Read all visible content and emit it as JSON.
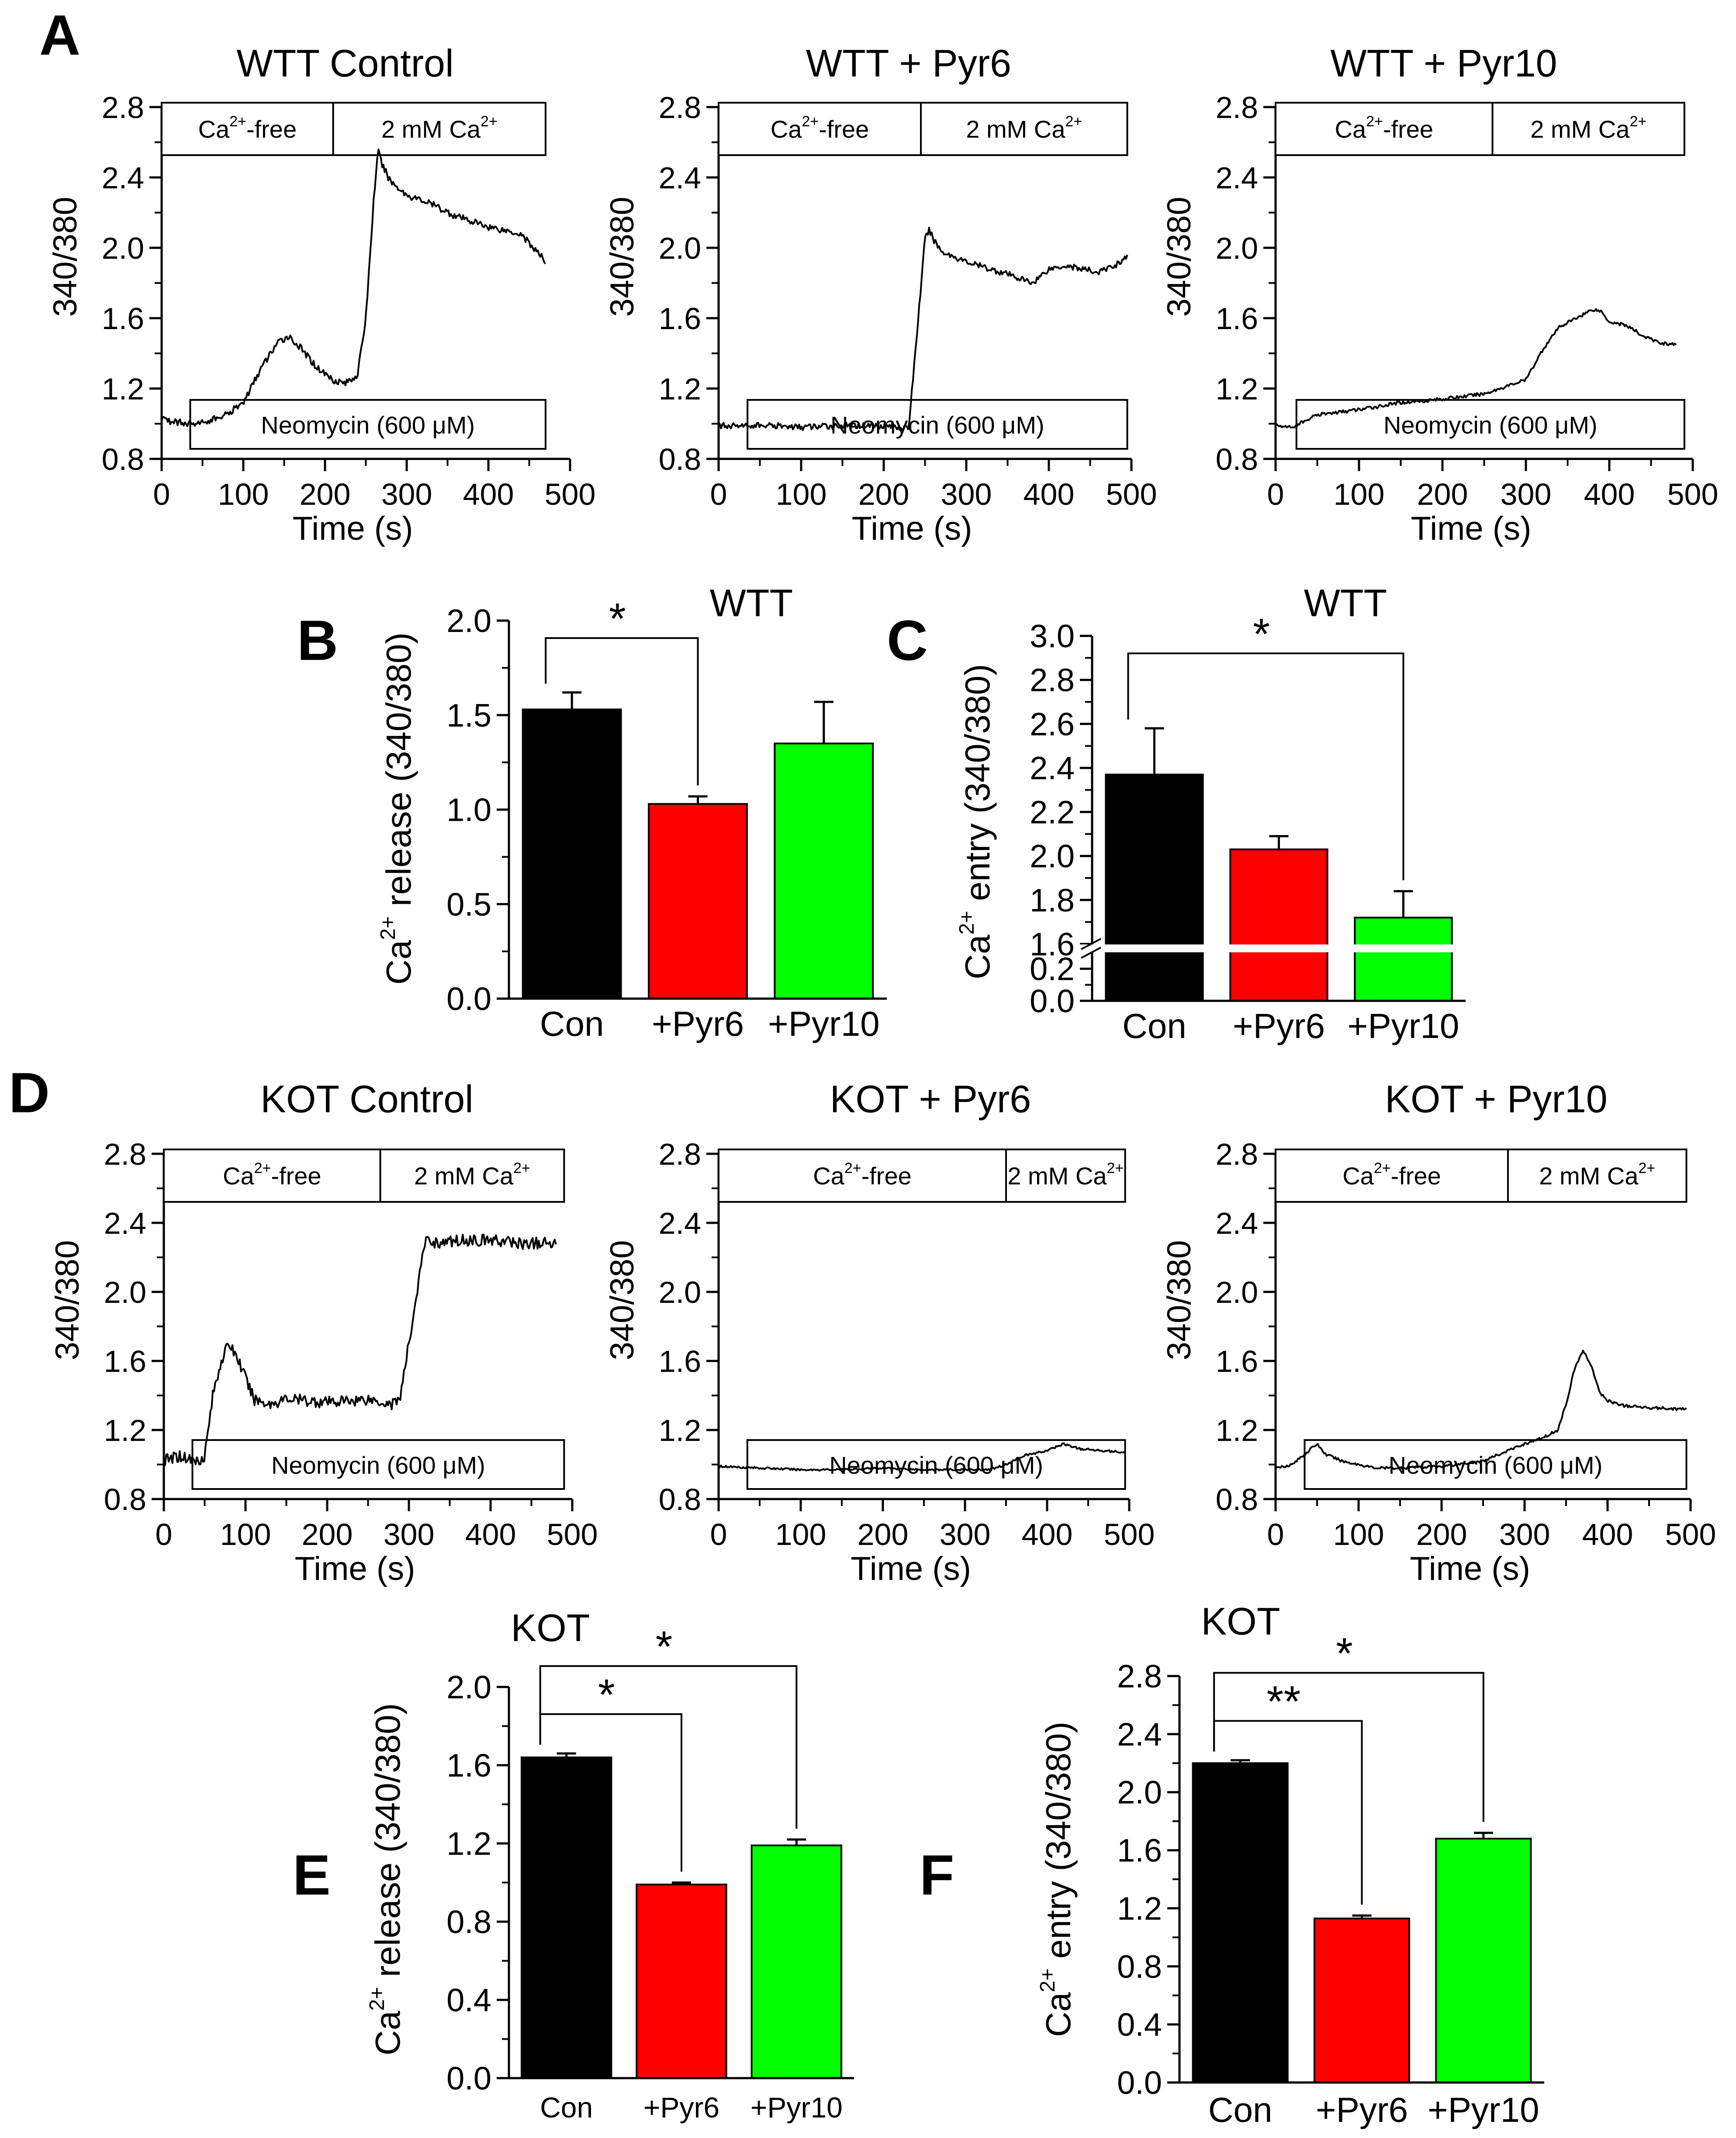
{
  "figure": {
    "panel_letters": [
      "A",
      "B",
      "C",
      "D",
      "E",
      "F"
    ]
  },
  "chart_data": [
    {
      "id": "A1",
      "type": "line",
      "title": "WTT Control",
      "xlabel": "Time (s)",
      "ylabel": "340/380",
      "xlim": [
        0,
        500
      ],
      "ylim": [
        0.8,
        2.8
      ],
      "xticks": [
        "0",
        "100",
        "200",
        "300",
        "400",
        "500"
      ],
      "yticks": [
        "0.8",
        "1.2",
        "1.6",
        "2.0",
        "2.4",
        "2.8"
      ],
      "top_boxes": [
        {
          "pre": "Ca",
          "sup": "2+",
          "post": "-free",
          "x0": 0,
          "x1": 210
        },
        {
          "pre": "2 mM Ca",
          "sup": "2+",
          "post": "",
          "x0": 210,
          "x1": 470
        }
      ],
      "bottom_box": {
        "label": "Neomycin (600 μM)",
        "x0": 35,
        "x1": 470
      },
      "noise": 0.02,
      "series": [
        {
          "x": [
            0,
            20,
            40,
            60,
            80,
            100,
            120,
            140,
            155,
            170,
            190,
            210,
            225,
            240,
            250,
            260,
            265,
            270,
            280,
            300,
            330,
            360,
            400,
            440,
            470
          ],
          "y": [
            1.02,
            1.01,
            1.0,
            1.02,
            1.05,
            1.12,
            1.3,
            1.45,
            1.5,
            1.43,
            1.32,
            1.25,
            1.23,
            1.28,
            1.6,
            2.3,
            2.55,
            2.47,
            2.38,
            2.3,
            2.25,
            2.18,
            2.12,
            2.08,
            1.92
          ]
        }
      ]
    },
    {
      "id": "A2",
      "type": "line",
      "title": "WTT + Pyr6",
      "xlabel": "Time (s)",
      "ylabel": "340/380",
      "xlim": [
        0,
        500
      ],
      "ylim": [
        0.8,
        2.8
      ],
      "xticks": [
        "0",
        "100",
        "200",
        "300",
        "400",
        "500"
      ],
      "yticks": [
        "0.8",
        "1.2",
        "1.6",
        "2.0",
        "2.4",
        "2.8"
      ],
      "top_boxes": [
        {
          "pre": "Ca",
          "sup": "2+",
          "post": "-free",
          "x0": 0,
          "x1": 245
        },
        {
          "pre": "2 mM Ca",
          "sup": "2+",
          "post": "",
          "x0": 245,
          "x1": 495
        }
      ],
      "bottom_box": {
        "label": "Neomycin (600 μM)",
        "x0": 35,
        "x1": 495
      },
      "noise": 0.018,
      "series": [
        {
          "x": [
            0,
            50,
            100,
            150,
            200,
            220,
            230,
            240,
            250,
            255,
            260,
            270,
            300,
            350,
            380,
            400,
            420,
            440,
            460,
            480,
            495
          ],
          "y": [
            0.99,
            0.99,
            0.98,
            0.99,
            0.99,
            0.98,
            0.97,
            1.5,
            2.05,
            2.1,
            2.05,
            1.98,
            1.92,
            1.85,
            1.8,
            1.88,
            1.9,
            1.88,
            1.86,
            1.9,
            1.95
          ]
        }
      ]
    },
    {
      "id": "A3",
      "type": "line",
      "title": "WTT + Pyr10",
      "xlabel": "Time (s)",
      "ylabel": "340/380",
      "xlim": [
        0,
        500
      ],
      "ylim": [
        0.8,
        2.8
      ],
      "xticks": [
        "0",
        "100",
        "200",
        "300",
        "400",
        "500"
      ],
      "yticks": [
        "0.8",
        "1.2",
        "1.6",
        "2.0",
        "2.4",
        "2.8"
      ],
      "top_boxes": [
        {
          "pre": "Ca",
          "sup": "2+",
          "post": "-free",
          "x0": 0,
          "x1": 260
        },
        {
          "pre": "2 mM Ca",
          "sup": "2+",
          "post": "",
          "x0": 260,
          "x1": 490
        }
      ],
      "bottom_box": {
        "label": "Neomycin (600 μM)",
        "x0": 25,
        "x1": 490
      },
      "noise": 0.01,
      "series": [
        {
          "x": [
            0,
            20,
            50,
            100,
            150,
            200,
            250,
            300,
            320,
            340,
            360,
            380,
            390,
            400,
            420,
            440,
            460,
            480
          ],
          "y": [
            0.99,
            0.98,
            1.05,
            1.08,
            1.12,
            1.14,
            1.17,
            1.25,
            1.42,
            1.55,
            1.6,
            1.65,
            1.64,
            1.58,
            1.56,
            1.5,
            1.46,
            1.45
          ]
        }
      ]
    },
    {
      "id": "B",
      "type": "bar",
      "title": "WTT",
      "ylabel_pre": "Ca",
      "ylabel_sup": "2+",
      "ylabel_post": " release (340/380)",
      "categories": [
        "Con",
        "+Pyr6",
        "+Pyr10"
      ],
      "values": [
        1.53,
        1.03,
        1.35
      ],
      "errors": [
        0.09,
        0.04,
        0.22
      ],
      "colors": [
        "#000000",
        "#ff0000",
        "#00ff00"
      ],
      "ylim": [
        0,
        2.0
      ],
      "yticks": [
        "0.0",
        "0.5",
        "1.0",
        "1.5",
        "2.0"
      ],
      "significance": [
        {
          "from": 0,
          "to": 1,
          "label": "*"
        }
      ]
    },
    {
      "id": "C",
      "type": "bar",
      "title": "WTT",
      "ylabel_pre": "Ca",
      "ylabel_sup": "2+",
      "ylabel_post": " entry (340/380)",
      "categories": [
        "Con",
        "+Pyr6",
        "+Pyr10"
      ],
      "values": [
        2.37,
        2.03,
        1.72
      ],
      "errors": [
        0.21,
        0.06,
        0.12
      ],
      "colors": [
        "#000000",
        "#ff0000",
        "#00ff00"
      ],
      "ylim": [
        0,
        3.0
      ],
      "axis_break": [
        0.3,
        1.6
      ],
      "yticks_low": [
        "0.0",
        "0.2"
      ],
      "yticks_high": [
        "1.6",
        "1.8",
        "2.0",
        "2.2",
        "2.4",
        "2.6",
        "2.8",
        "3.0"
      ],
      "significance": [
        {
          "from": 0,
          "to": 2,
          "label": "*"
        }
      ]
    },
    {
      "id": "D1",
      "type": "line",
      "title": "KOT Control",
      "xlabel": "Time (s)",
      "ylabel": "340/380",
      "xlim": [
        0,
        500
      ],
      "ylim": [
        0.8,
        2.8
      ],
      "xticks": [
        "0",
        "100",
        "200",
        "300",
        "400",
        "500"
      ],
      "yticks": [
        "0.8",
        "1.2",
        "1.6",
        "2.0",
        "2.4",
        "2.8"
      ],
      "top_boxes": [
        {
          "pre": "Ca",
          "sup": "2+",
          "post": "-free",
          "x0": 0,
          "x1": 265
        },
        {
          "pre": "2 mM Ca",
          "sup": "2+",
          "post": "",
          "x0": 265,
          "x1": 490
        }
      ],
      "bottom_box": {
        "label": "Neomycin (600 μM)",
        "x0": 35,
        "x1": 490
      },
      "noise": 0.035,
      "series": [
        {
          "x": [
            0,
            20,
            40,
            50,
            60,
            70,
            80,
            90,
            100,
            110,
            130,
            150,
            200,
            250,
            280,
            290,
            300,
            310,
            320,
            340,
            360,
            400,
            440,
            480
          ],
          "y": [
            1.02,
            1.05,
            1.02,
            1.05,
            1.4,
            1.6,
            1.7,
            1.62,
            1.5,
            1.38,
            1.35,
            1.38,
            1.36,
            1.38,
            1.35,
            1.4,
            1.7,
            2.0,
            2.3,
            2.28,
            2.3,
            2.3,
            2.28,
            2.28
          ]
        }
      ]
    },
    {
      "id": "D2",
      "type": "line",
      "title": "KOT + Pyr6",
      "xlabel": "Time (s)",
      "ylabel": "340/380",
      "xlim": [
        0,
        500
      ],
      "ylim": [
        0.8,
        2.8
      ],
      "xticks": [
        "0",
        "100",
        "200",
        "300",
        "400",
        "500"
      ],
      "yticks": [
        "0.8",
        "1.2",
        "1.6",
        "2.0",
        "2.4",
        "2.8"
      ],
      "top_boxes": [
        {
          "pre": "Ca",
          "sup": "2+",
          "post": "-free",
          "x0": 0,
          "x1": 350
        },
        {
          "pre": "2 mM Ca",
          "sup": "2+",
          "post": "",
          "x0": 350,
          "x1": 495
        }
      ],
      "bottom_box": {
        "label": "Neomycin (600 μM)",
        "x0": 35,
        "x1": 495
      },
      "noise": 0.006,
      "series": [
        {
          "x": [
            0,
            50,
            100,
            150,
            200,
            250,
            300,
            330,
            350,
            370,
            400,
            420,
            440,
            470,
            495
          ],
          "y": [
            0.99,
            0.98,
            0.97,
            0.97,
            0.98,
            0.97,
            0.97,
            0.97,
            1.0,
            1.05,
            1.08,
            1.12,
            1.09,
            1.08,
            1.07
          ]
        }
      ]
    },
    {
      "id": "D3",
      "type": "line",
      "title": "KOT + Pyr10",
      "xlabel": "Time (s)",
      "ylabel": "340/380",
      "xlim": [
        0,
        500
      ],
      "ylim": [
        0.8,
        2.8
      ],
      "xticks": [
        "0",
        "100",
        "200",
        "300",
        "400",
        "500"
      ],
      "yticks": [
        "0.8",
        "1.2",
        "1.6",
        "2.0",
        "2.4",
        "2.8"
      ],
      "top_boxes": [
        {
          "pre": "Ca",
          "sup": "2+",
          "post": "-free",
          "x0": 0,
          "x1": 280
        },
        {
          "pre": "2 mM Ca",
          "sup": "2+",
          "post": "",
          "x0": 280,
          "x1": 495
        }
      ],
      "bottom_box": {
        "label": "Neomycin (600 μM)",
        "x0": 35,
        "x1": 495
      },
      "noise": 0.008,
      "series": [
        {
          "x": [
            0,
            20,
            40,
            50,
            60,
            80,
            100,
            120,
            150,
            200,
            250,
            280,
            300,
            320,
            340,
            350,
            360,
            370,
            380,
            390,
            400,
            420,
            450,
            495
          ],
          "y": [
            0.98,
            1.0,
            1.08,
            1.12,
            1.06,
            1.02,
            1.0,
            0.98,
            0.98,
            0.99,
            1.02,
            1.08,
            1.12,
            1.15,
            1.2,
            1.35,
            1.55,
            1.66,
            1.58,
            1.42,
            1.37,
            1.34,
            1.33,
            1.32
          ]
        }
      ]
    },
    {
      "id": "E",
      "type": "bar",
      "title": "KOT",
      "ylabel_pre": "Ca",
      "ylabel_sup": "2+",
      "ylabel_post": " release (340/380)",
      "categories": [
        "Con",
        "+Pyr6",
        "+Pyr10"
      ],
      "values": [
        1.64,
        0.99,
        1.19
      ],
      "errors": [
        0.02,
        0.01,
        0.03
      ],
      "colors": [
        "#000000",
        "#ff0000",
        "#00ff00"
      ],
      "ylim": [
        0,
        2.0
      ],
      "yticks": [
        "0.0",
        "0.4",
        "0.8",
        "1.2",
        "1.6",
        "2.0"
      ],
      "significance": [
        {
          "from": 0,
          "to": 1,
          "label": "*"
        },
        {
          "from": 0,
          "to": 2,
          "label": "*"
        }
      ]
    },
    {
      "id": "F",
      "type": "bar",
      "title": "KOT",
      "ylabel_pre": "Ca",
      "ylabel_sup": "2+",
      "ylabel_post": " entry (340/380)",
      "categories": [
        "Con",
        "+Pyr6",
        "+Pyr10"
      ],
      "values": [
        2.2,
        1.13,
        1.68
      ],
      "errors": [
        0.02,
        0.02,
        0.04
      ],
      "colors": [
        "#000000",
        "#ff0000",
        "#00ff00"
      ],
      "ylim": [
        0,
        2.8
      ],
      "yticks": [
        "0.0",
        "0.4",
        "0.8",
        "1.2",
        "1.6",
        "2.0",
        "2.4",
        "2.8"
      ],
      "significance": [
        {
          "from": 0,
          "to": 1,
          "label": "**"
        },
        {
          "from": 0,
          "to": 2,
          "label": "*"
        }
      ]
    }
  ]
}
